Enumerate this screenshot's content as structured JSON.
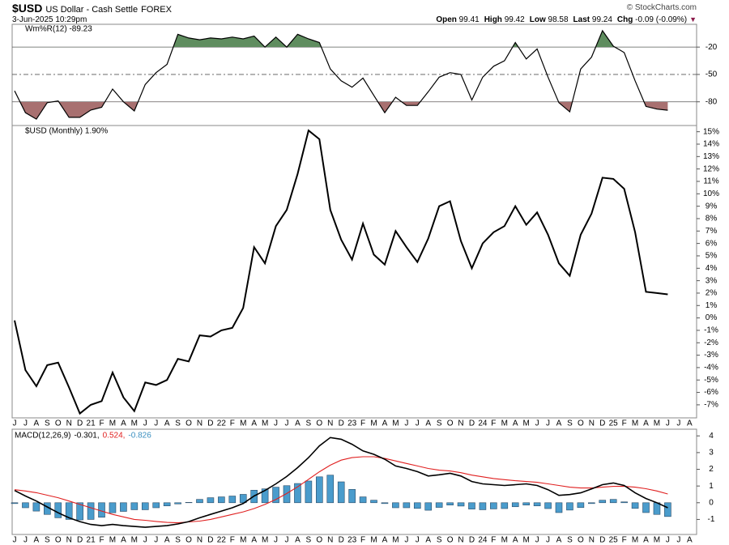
{
  "header": {
    "symbol": "$USD",
    "name": "US Dollar - Cash Settle",
    "exchange": "FOREX",
    "date": "3-Jun-2025 10:29pm",
    "copyright": "© StockCharts.com",
    "quote": [
      {
        "label": "Open",
        "value": 99.41
      },
      {
        "label": "High",
        "value": 99.42
      },
      {
        "label": "Low",
        "value": 98.58
      },
      {
        "label": "Last",
        "value": 99.24
      },
      {
        "label": "Chg",
        "value": "-0.09 (-0.09%)"
      }
    ]
  },
  "chart_data": [
    {
      "type": "williams",
      "legend": "Wm%R(12) -89.23",
      "color": "#000000",
      "overbought_color": "#5f8d5f",
      "oversold_color": "#a87070",
      "ylim": [
        -106,
        5
      ],
      "yticks": [
        -20,
        -50,
        -80
      ],
      "values": [
        -68,
        -92,
        -99,
        -81,
        -79,
        -97,
        -97,
        -89,
        -86,
        -66,
        -80,
        -90,
        -61,
        -48,
        -39,
        -6,
        -10,
        -12,
        -10,
        -11,
        -9,
        -11,
        -8,
        -20,
        -9,
        -20,
        -6,
        -11,
        -15,
        -44,
        -57,
        -64,
        -54,
        -73,
        -92,
        -75,
        -84,
        -84,
        -69,
        -53,
        -48,
        -50,
        -78,
        -53,
        -41,
        -35,
        -15,
        -33,
        -22,
        -53,
        -81,
        -91,
        -44,
        -31,
        -2,
        -19,
        -26,
        -57,
        -85,
        -88,
        -89.23,
        null,
        null
      ]
    },
    {
      "type": "line",
      "legend": "$USD (Monthly) 1.90%",
      "color": "#000000",
      "categories": [
        "J",
        "J",
        "A",
        "S",
        "O",
        "N",
        "D",
        "21",
        "F",
        "M",
        "A",
        "M",
        "J",
        "J",
        "A",
        "S",
        "O",
        "N",
        "D",
        "22",
        "F",
        "M",
        "A",
        "M",
        "J",
        "J",
        "A",
        "S",
        "O",
        "N",
        "D",
        "23",
        "F",
        "M",
        "A",
        "M",
        "J",
        "J",
        "A",
        "S",
        "O",
        "N",
        "D",
        "24",
        "F",
        "M",
        "A",
        "M",
        "J",
        "J",
        "A",
        "S",
        "O",
        "N",
        "D",
        "25",
        "F",
        "M",
        "A",
        "M",
        "J",
        "J",
        "A"
      ],
      "ylim": [
        -8.05,
        15.5
      ],
      "yticks": [
        {
          "value": 15,
          "label": "15%"
        },
        {
          "value": 14,
          "label": "14%"
        },
        {
          "value": 13,
          "label": "13%"
        },
        {
          "value": 12,
          "label": "12%"
        },
        {
          "value": 11,
          "label": "11%"
        },
        {
          "value": 10,
          "label": "10%"
        },
        {
          "value": 9,
          "label": "9%"
        },
        {
          "value": 8,
          "label": "8%"
        },
        {
          "value": 7,
          "label": "7%"
        },
        {
          "value": 6,
          "label": "6%"
        },
        {
          "value": 5,
          "label": "5%"
        },
        {
          "value": 4,
          "label": "4%"
        },
        {
          "value": 3,
          "label": "3%"
        },
        {
          "value": 2,
          "label": "2%"
        },
        {
          "value": 1,
          "label": "1%"
        },
        {
          "value": 0,
          "label": "0%"
        },
        {
          "value": -1,
          "label": "-1%"
        },
        {
          "value": -2,
          "label": "-2%"
        },
        {
          "value": -3,
          "label": "-3%"
        },
        {
          "value": -4,
          "label": "-4%"
        },
        {
          "value": -5,
          "label": "-5%"
        },
        {
          "value": -6,
          "label": "-6%"
        },
        {
          "value": -7,
          "label": "-7%"
        }
      ],
      "values": [
        -0.2,
        -4.2,
        -5.5,
        -3.8,
        -3.6,
        -5.6,
        -7.7,
        -7.0,
        -6.7,
        -4.4,
        -6.4,
        -7.5,
        -5.2,
        -5.4,
        -5.0,
        -3.3,
        -3.5,
        -1.4,
        -1.5,
        -1.0,
        -0.8,
        0.8,
        5.7,
        4.4,
        7.4,
        8.7,
        11.6,
        15.1,
        14.4,
        8.7,
        6.3,
        4.7,
        7.6,
        5.1,
        4.3,
        7.0,
        5.7,
        4.5,
        6.4,
        9.0,
        9.4,
        6.2,
        4.0,
        6.0,
        6.9,
        7.4,
        9.0,
        7.5,
        8.5,
        6.7,
        4.4,
        3.4,
        6.7,
        8.4,
        11.3,
        11.2,
        10.4,
        6.9,
        2.1,
        2.0,
        1.9,
        null,
        null
      ]
    },
    {
      "type": "macd",
      "legend": [
        "MACD(12,26,9)",
        "-0.301,",
        "0.524,",
        "-0.826"
      ],
      "categories": [
        "J",
        "J",
        "A",
        "S",
        "O",
        "N",
        "D",
        "21",
        "F",
        "M",
        "A",
        "M",
        "J",
        "J",
        "A",
        "S",
        "O",
        "N",
        "D",
        "22",
        "F",
        "M",
        "A",
        "M",
        "J",
        "J",
        "A",
        "S",
        "O",
        "N",
        "D",
        "23",
        "F",
        "M",
        "A",
        "M",
        "J",
        "J",
        "A",
        "S",
        "O",
        "N",
        "D",
        "24",
        "F",
        "M",
        "A",
        "M",
        "J",
        "J",
        "A",
        "S",
        "O",
        "N",
        "D",
        "25",
        "F",
        "M",
        "A",
        "M",
        "J",
        "J",
        "A"
      ],
      "ylim": [
        -1.9,
        4.4
      ],
      "yticks": [
        4,
        3,
        2,
        1,
        0,
        -1
      ],
      "series": [
        {
          "kind": "bar",
          "color": "#4a9ccc",
          "values": [
            -0.05,
            -0.3,
            -0.5,
            -0.7,
            -0.9,
            -1.0,
            -1.03,
            -1.0,
            -0.87,
            -0.6,
            -0.52,
            -0.42,
            -0.42,
            -0.3,
            -0.19,
            -0.07,
            0.02,
            0.2,
            0.3,
            0.35,
            0.4,
            0.5,
            0.75,
            0.83,
            0.93,
            1.02,
            1.15,
            1.3,
            1.55,
            1.65,
            1.25,
            0.8,
            0.35,
            0.15,
            -0.05,
            -0.3,
            -0.3,
            -0.34,
            -0.45,
            -0.28,
            -0.14,
            -0.2,
            -0.38,
            -0.42,
            -0.37,
            -0.35,
            -0.24,
            -0.14,
            -0.19,
            -0.35,
            -0.59,
            -0.44,
            -0.29,
            -0.05,
            0.15,
            0.2,
            0.05,
            -0.34,
            -0.59,
            -0.7,
            -0.826,
            null,
            null
          ]
        },
        {
          "kind": "line",
          "color": "#e02020",
          "values": [
            0.78,
            0.7,
            0.6,
            0.45,
            0.3,
            0.1,
            -0.1,
            -0.3,
            -0.5,
            -0.7,
            -0.85,
            -1.0,
            -1.05,
            -1.12,
            -1.18,
            -1.2,
            -1.15,
            -1.1,
            -1.0,
            -0.85,
            -0.7,
            -0.55,
            -0.35,
            -0.1,
            0.2,
            0.55,
            0.95,
            1.4,
            1.85,
            2.25,
            2.55,
            2.7,
            2.75,
            2.75,
            2.65,
            2.5,
            2.35,
            2.2,
            2.05,
            1.95,
            1.9,
            1.8,
            1.65,
            1.55,
            1.45,
            1.38,
            1.32,
            1.27,
            1.22,
            1.13,
            1.03,
            0.93,
            0.88,
            0.88,
            0.93,
            0.98,
            0.98,
            0.93,
            0.84,
            0.7,
            0.524,
            null,
            null
          ]
        },
        {
          "kind": "line",
          "color": "#000000",
          "values": [
            0.73,
            0.4,
            0.1,
            -0.25,
            -0.6,
            -0.9,
            -1.13,
            -1.3,
            -1.37,
            -1.3,
            -1.37,
            -1.42,
            -1.47,
            -1.42,
            -1.37,
            -1.27,
            -1.13,
            -0.9,
            -0.7,
            -0.5,
            -0.3,
            -0.05,
            0.4,
            0.73,
            1.13,
            1.57,
            2.1,
            2.7,
            3.4,
            3.9,
            3.8,
            3.5,
            3.1,
            2.9,
            2.6,
            2.2,
            2.05,
            1.86,
            1.6,
            1.67,
            1.76,
            1.6,
            1.27,
            1.13,
            1.08,
            1.03,
            1.08,
            1.13,
            1.03,
            0.78,
            0.44,
            0.49,
            0.59,
            0.83,
            1.08,
            1.18,
            1.03,
            0.59,
            0.25,
            0,
            -0.301,
            null,
            null
          ]
        }
      ],
      "legend_colors": [
        "#000000",
        "#000000",
        "#e02020",
        "#3a8fc0"
      ]
    }
  ]
}
